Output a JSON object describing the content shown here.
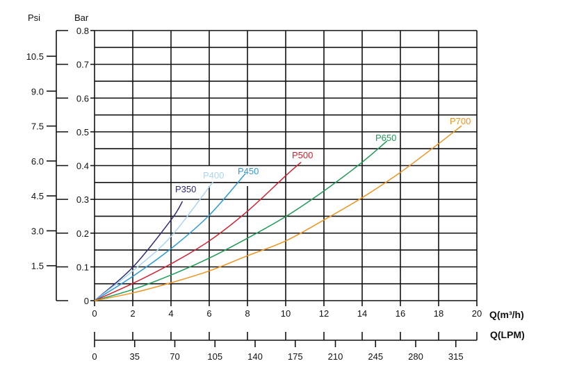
{
  "chart_data": {
    "type": "line",
    "xlabel": "Q(m³/h)",
    "xlabel2": "Q(LPM)",
    "ylabel_left": "Psi",
    "ylabel": "Bar",
    "xlim": [
      0,
      20
    ],
    "ylim": [
      0,
      0.8
    ],
    "grid": true,
    "x_ticks": [
      "0",
      "2",
      "4",
      "6",
      "8",
      "10",
      "12",
      "14",
      "16",
      "18",
      "20"
    ],
    "y_ticks_bar": [
      "0",
      "0.1",
      "0.2",
      "0.3",
      "0.4",
      "0.5",
      "0.6",
      "0.7",
      "0.8"
    ],
    "y_ticks_psi": [
      "1.5",
      "3.0",
      "4.5",
      "6.0",
      "7.5",
      "9.0",
      "10.5"
    ],
    "x2_ticks_lpm": [
      "0",
      "35",
      "70",
      "105",
      "140",
      "175",
      "210",
      "245",
      "280",
      "315"
    ],
    "series": [
      {
        "name": "P350",
        "color": "#2b2a7a",
        "x": [
          0,
          2,
          4,
          4.6
        ],
        "y": [
          0,
          0.099,
          0.239,
          0.294
        ]
      },
      {
        "name": "P400",
        "color": "#a9d5f0",
        "x": [
          0,
          2,
          4,
          6.2
        ],
        "y": [
          0,
          0.088,
          0.19,
          0.352
        ]
      },
      {
        "name": "P450",
        "color": "#2a9bd8",
        "x": [
          0,
          2,
          4,
          6,
          7.9
        ],
        "y": [
          0,
          0.072,
          0.154,
          0.253,
          0.377
        ]
      },
      {
        "name": "P500",
        "color": "#d4202e",
        "x": [
          0,
          2,
          4,
          6,
          8,
          10,
          10.8
        ],
        "y": [
          0,
          0.051,
          0.109,
          0.177,
          0.265,
          0.37,
          0.41
        ]
      },
      {
        "name": "P650",
        "color": "#1f9a57",
        "x": [
          0,
          2,
          4,
          6,
          8,
          10,
          12,
          14,
          15.3
        ],
        "y": [
          0,
          0.033,
          0.076,
          0.126,
          0.185,
          0.249,
          0.325,
          0.41,
          0.473
        ]
      },
      {
        "name": "P700",
        "color": "#ef9420",
        "x": [
          0,
          2,
          4,
          6,
          8,
          10,
          12,
          14,
          16,
          18,
          19.2
        ],
        "y": [
          0,
          0.023,
          0.053,
          0.088,
          0.133,
          0.177,
          0.239,
          0.305,
          0.38,
          0.465,
          0.518
        ]
      }
    ]
  }
}
